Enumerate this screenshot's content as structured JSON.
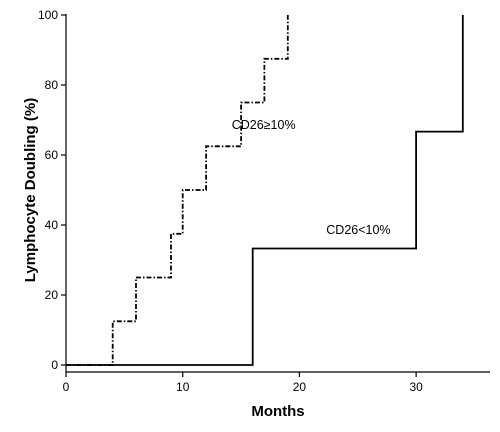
{
  "chart_data": {
    "type": "line",
    "title": "",
    "xlabel": "Months",
    "ylabel": "Lymphocyte Doubling (%)",
    "xlim": [
      0,
      35
    ],
    "ylim": [
      0,
      100
    ],
    "xticks": [
      "0",
      "10",
      "20",
      "30"
    ],
    "yticks": [
      "0",
      "20",
      "40",
      "60",
      "80",
      "100"
    ],
    "grid": false,
    "legend": "none",
    "series": [
      {
        "name": "CD26≥10%",
        "style": "dashed-step",
        "color": "#000000",
        "points": [
          [
            0,
            0
          ],
          [
            4,
            0
          ],
          [
            4,
            12.5
          ],
          [
            6,
            12.5
          ],
          [
            6,
            25
          ],
          [
            9,
            25
          ],
          [
            9,
            37.5
          ],
          [
            10,
            37.5
          ],
          [
            10,
            50
          ],
          [
            12,
            50
          ],
          [
            12,
            62.5
          ],
          [
            15,
            62.5
          ],
          [
            15,
            75
          ],
          [
            17,
            75
          ],
          [
            17,
            87.5
          ],
          [
            19,
            87.5
          ],
          [
            19,
            100
          ]
        ]
      },
      {
        "name": "CD26<10%",
        "style": "solid-step",
        "color": "#000000",
        "points": [
          [
            0,
            0
          ],
          [
            16,
            0
          ],
          [
            16,
            33.3
          ],
          [
            30,
            33.3
          ],
          [
            30,
            66.7
          ],
          [
            34,
            66.7
          ],
          [
            34,
            100
          ]
        ]
      }
    ],
    "annotations": [
      {
        "text": "CD26≥10%",
        "x": 14.2,
        "y": 67.5
      },
      {
        "text": "CD26<10%",
        "x": 22.3,
        "y": 37.5
      }
    ]
  }
}
